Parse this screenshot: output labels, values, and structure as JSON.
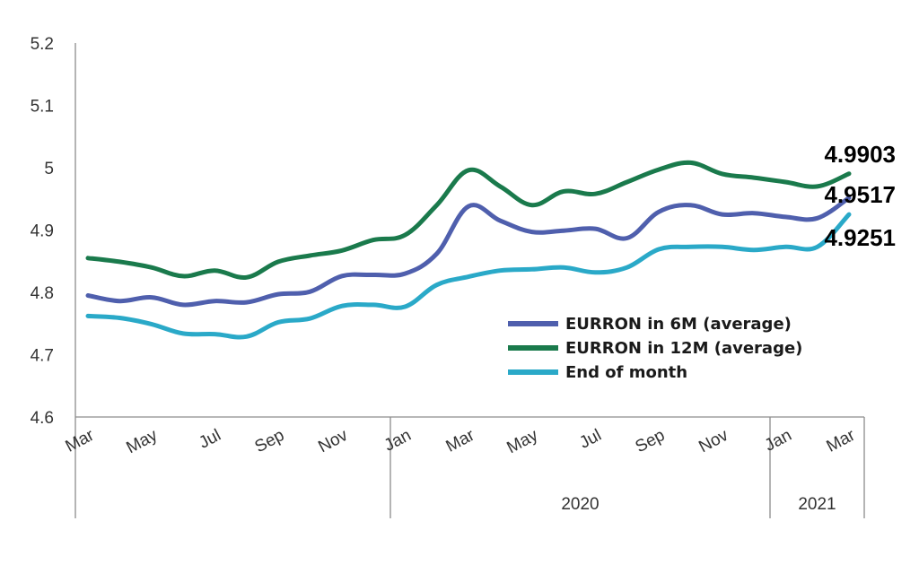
{
  "chart_data": {
    "type": "line",
    "title": "",
    "xlabel": "",
    "ylabel": "",
    "ylim": [
      4.6,
      5.2
    ],
    "yticks": [
      "4.6",
      "4.7",
      "4.8",
      "4.9",
      "5",
      "5.1",
      "5.2"
    ],
    "x_tick_labels": [
      "Mar",
      "May",
      "Jul",
      "Sep",
      "Nov",
      "Jan",
      "Mar",
      "May",
      "Jul",
      "Sep",
      "Nov",
      "Jan",
      "Mar"
    ],
    "year_labels": [
      "2020",
      "2021"
    ],
    "grid": false,
    "legend_position": "lower-right",
    "series": [
      {
        "name": "EURRON in 6M (average)",
        "color": "#4f5fad",
        "values": [
          4.795,
          4.786,
          4.792,
          4.78,
          4.786,
          4.784,
          4.797,
          4.801,
          4.826,
          4.828,
          4.83,
          4.862,
          4.938,
          4.915,
          4.897,
          4.899,
          4.902,
          4.887,
          4.929,
          4.94,
          4.925,
          4.927,
          4.921,
          4.919,
          4.9517
        ]
      },
      {
        "name": "EURRON in 12M (average)",
        "color": "#1a7a4c",
        "values": [
          4.855,
          4.849,
          4.84,
          4.826,
          4.835,
          4.824,
          4.849,
          4.859,
          4.867,
          4.884,
          4.892,
          4.94,
          4.996,
          4.97,
          4.94,
          4.962,
          4.958,
          4.977,
          4.997,
          5.008,
          4.99,
          4.984,
          4.977,
          4.97,
          4.9903
        ]
      },
      {
        "name": "End of month",
        "color": "#2aa9c8",
        "values": [
          4.762,
          4.759,
          4.749,
          4.734,
          4.733,
          4.729,
          4.752,
          4.758,
          4.778,
          4.78,
          4.777,
          4.812,
          4.825,
          4.835,
          4.837,
          4.84,
          4.832,
          4.84,
          4.869,
          4.873,
          4.873,
          4.868,
          4.873,
          4.873,
          4.9251
        ]
      }
    ],
    "annotations": [
      "4.9903",
      "4.9517",
      "4.9251"
    ]
  }
}
